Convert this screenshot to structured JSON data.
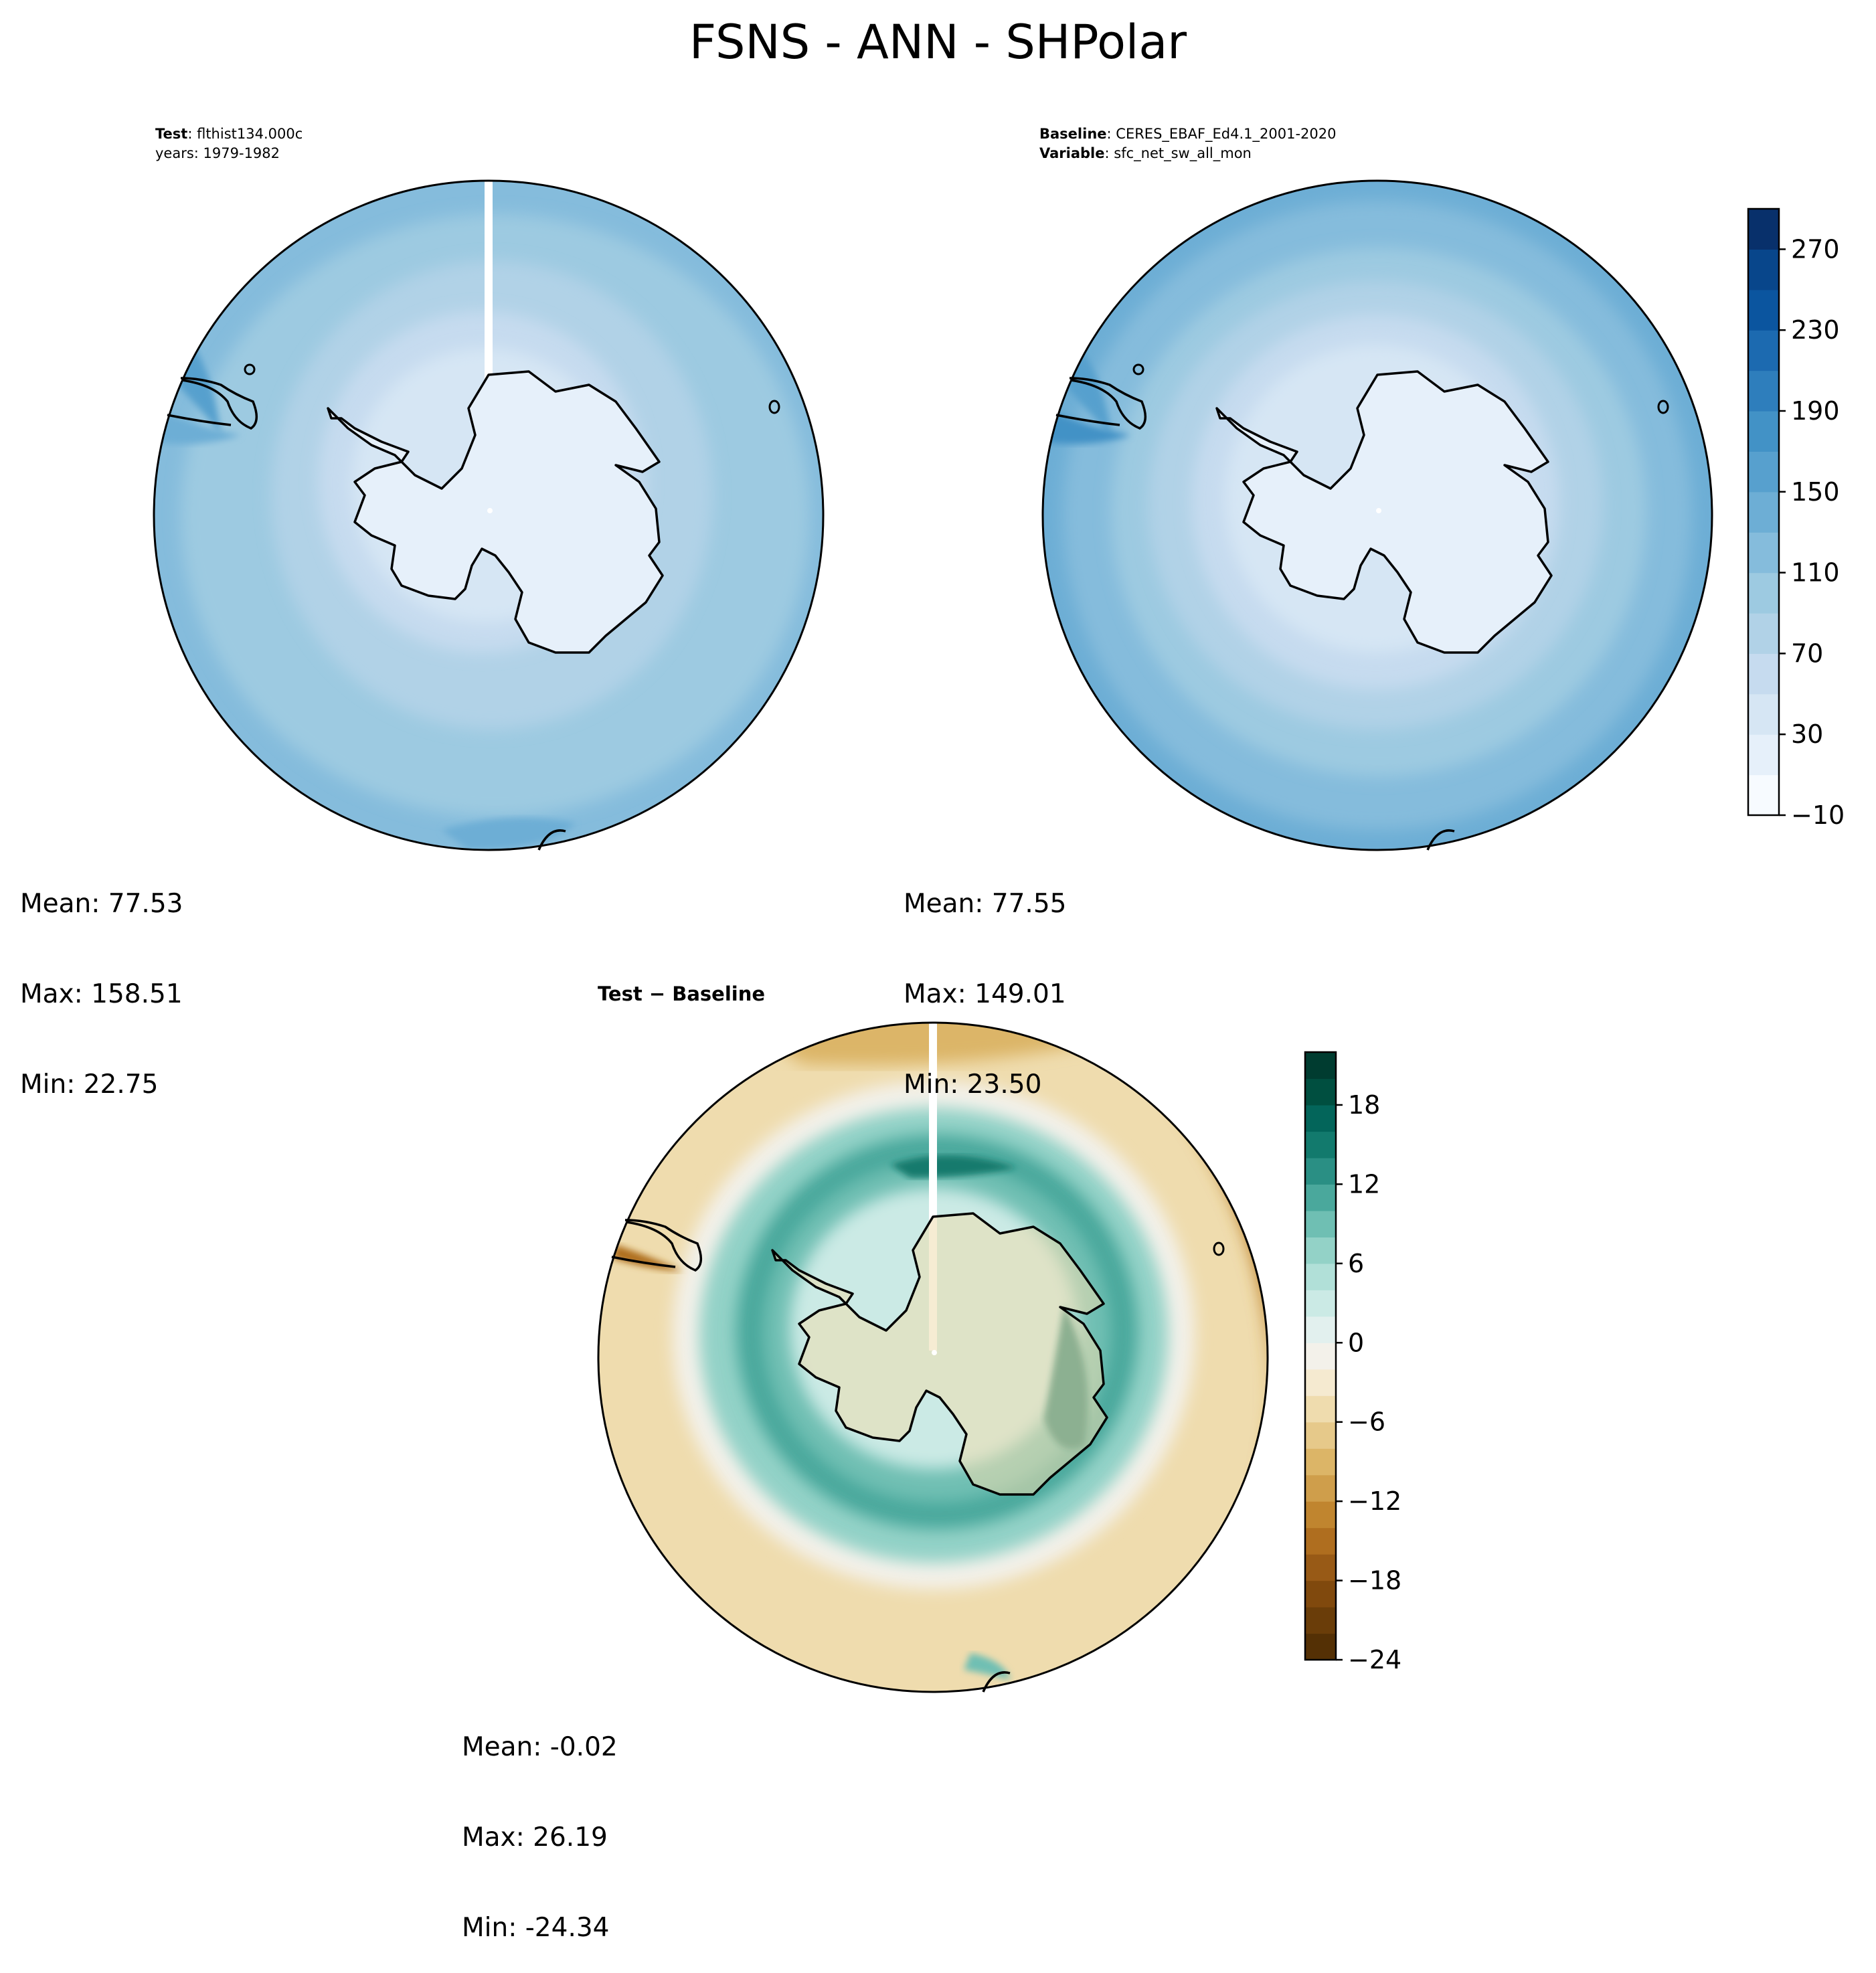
{
  "title": "FSNS - ANN - SHPolar",
  "panels": {
    "test": {
      "label_key": "Test",
      "label_value": "flthist134.000c",
      "line2": "years: 1979-1982",
      "stats": {
        "mean": "Mean: 77.53",
        "max": "Max: 158.51",
        "min": "Min: 22.75"
      }
    },
    "baseline": {
      "label_key": "Baseline",
      "label_value": "CERES_EBAF_Ed4.1_2001-2020",
      "line2_key": "Variable",
      "line2_value": "sfc_net_sw_all_mon",
      "stats": {
        "mean": "Mean: 77.55",
        "max": "Max: 149.01",
        "min": "Min: 23.50"
      }
    },
    "diff": {
      "title_a": "Test",
      "title_sep": " − ",
      "title_b": "Baseline",
      "stats": {
        "mean": "Mean: -0.02",
        "max": "Max: 26.19",
        "min": "Min: -24.34"
      }
    }
  },
  "colorbar_main": {
    "ticks": [
      "270",
      "230",
      "190",
      "150",
      "110",
      "70",
      "30",
      "−10"
    ],
    "levels": [
      -10,
      10,
      30,
      50,
      70,
      90,
      110,
      130,
      150,
      170,
      190,
      210,
      230,
      250,
      270,
      290
    ],
    "colors": [
      "#f7fbff",
      "#e6f0fa",
      "#d6e6f4",
      "#c6dbef",
      "#b1d2e7",
      "#9dcae1",
      "#85bcdc",
      "#6daed5",
      "#57a0ce",
      "#4292c6",
      "#2e7ebc",
      "#1c6ab0",
      "#0b559f",
      "#08468b",
      "#08306b"
    ]
  },
  "colorbar_diff": {
    "ticks": [
      "18",
      "12",
      "6",
      "0",
      "−6",
      "−12",
      "−18",
      "−24"
    ],
    "colors": [
      "#543005",
      "#6a3d09",
      "#80490d",
      "#985a16",
      "#af6e1f",
      "#c0852f",
      "#cf9e4b",
      "#dcb567",
      "#e6c98a",
      "#efdcae",
      "#f5ead0",
      "#f3f1ea",
      "#e2f0ee",
      "#cbeae5",
      "#b1e0d8",
      "#93d2c7",
      "#6fbfb3",
      "#4aa89c",
      "#2a8f84",
      "#127a6d",
      "#03655a",
      "#004f40",
      "#003c30"
    ]
  }
}
